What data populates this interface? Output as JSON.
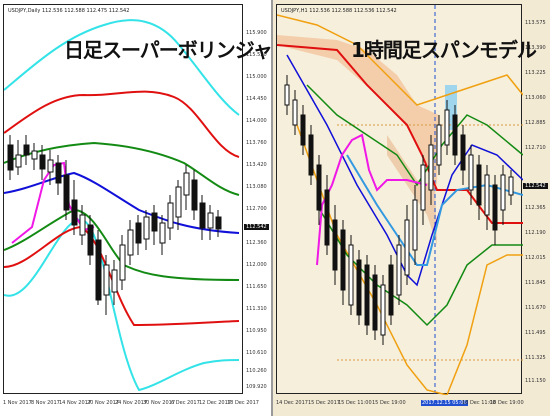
{
  "left_chart": {
    "symbol_line": "USDJPY,Daily  112.536 112.588 112.475 112.542",
    "title": "日足スーパーボリンジャー",
    "price_labels": [
      "115.900",
      "115.520",
      "115.000",
      "114.450",
      "114.000",
      "113.760",
      "113.420",
      "113.080",
      "112.700",
      "112.360",
      "112.000",
      "111.650",
      "111.310",
      "110.950",
      "110.610",
      "110.260",
      "109.920"
    ],
    "current_price": "112.542",
    "time_labels": [
      "1 Nov 2017",
      "8 Nov 2017",
      "14 Nov 2017",
      "20 Nov 2017",
      "24 Nov 2017",
      "30 Nov 2017",
      "6 Dec 2017",
      "12 Dec 2017",
      "18 Dec 2017"
    ]
  },
  "right_chart": {
    "symbol_line": "USDJPY,H1  112.536 112.588 112.536 112.542",
    "title": "1時間足スパンモデル",
    "price_labels": [
      "113.575",
      "113.390",
      "113.225",
      "113.060",
      "112.885",
      "112.710",
      "112.542",
      "112.365",
      "112.190",
      "112.015",
      "111.845",
      "111.670",
      "111.495",
      "111.325",
      "111.150"
    ],
    "current_price": "112.542",
    "time_labels": [
      "14 Dec 2017",
      "15 Dec 2017",
      "15 Dec 11:00",
      "15 Dec 19:00",
      "18 Dec 03:00",
      "18 Dec 11:00",
      "2017.12.15 05:00",
      "18 Dec 19:00"
    ]
  },
  "colors": {
    "sigma3": "#33e3e8",
    "sigma2": "#e01010",
    "sigma1": "#138a13",
    "midline": "#1010d8",
    "lagging": "#f018e6",
    "span_fill": "#f3c39a",
    "span_up": "#111111",
    "highlight_box": "#9fd6ee"
  }
}
